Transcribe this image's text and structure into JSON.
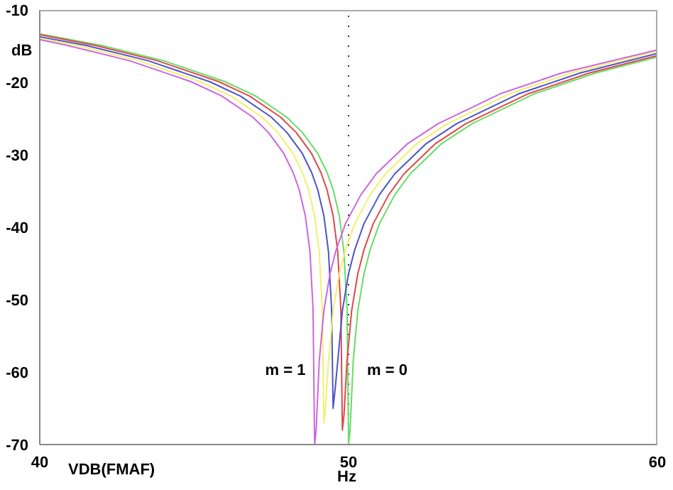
{
  "chart_data": {
    "type": "line",
    "xlabel": "Hz",
    "ylabel": "dB",
    "legend_title": "VDB(FMAF)",
    "grid": false,
    "line_style": "solid",
    "xlim": [
      40,
      60
    ],
    "xticks": [
      40,
      50,
      60
    ],
    "ylim": [
      -70,
      -10
    ],
    "yticks": [
      -70,
      -60,
      -50,
      -40,
      -30,
      -20,
      -10
    ],
    "series": [
      {
        "color": "#66dd66",
        "x": [
          40,
          42,
          44,
          46,
          47,
          48,
          48.5,
          49,
          49.3,
          49.5,
          49.7,
          49.85,
          49.95,
          50,
          50.05,
          50.15,
          50.3,
          50.5,
          50.7,
          51,
          51.5,
          52,
          53,
          54,
          56,
          58,
          60
        ],
        "values": [
          -13.3,
          -14.9,
          -17.0,
          -19.9,
          -21.9,
          -24.8,
          -26.9,
          -29.8,
          -32.4,
          -34.8,
          -38.4,
          -43.4,
          -51.3,
          -70,
          -68,
          -58.5,
          -51.5,
          -46.4,
          -43.1,
          -39.5,
          -35.5,
          -32.6,
          -28.5,
          -25.7,
          -21.6,
          -18.7,
          -16.5
        ]
      },
      {
        "color": "#e04848",
        "x": [
          40,
          41.8,
          43.8,
          45.8,
          46.8,
          47.8,
          48.3,
          48.8,
          49.1,
          49.3,
          49.5,
          49.65,
          49.75,
          49.8,
          49.85,
          49.95,
          50.1,
          50.3,
          50.5,
          50.8,
          51.3,
          51.8,
          52.8,
          53.8,
          55.8,
          57.8,
          60
        ],
        "values": [
          -13.4,
          -14.9,
          -17.0,
          -19.9,
          -21.9,
          -24.8,
          -26.9,
          -29.8,
          -32.4,
          -34.8,
          -38.4,
          -43.4,
          -51.3,
          -68,
          -66,
          -58.5,
          -51.5,
          -46.4,
          -43.1,
          -39.5,
          -35.5,
          -32.6,
          -28.5,
          -25.7,
          -21.6,
          -18.7,
          -16.3
        ]
      },
      {
        "color": "#4a55c8",
        "x": [
          40,
          41.5,
          43.5,
          45.5,
          46.5,
          47.5,
          48,
          48.5,
          48.8,
          49,
          49.2,
          49.35,
          49.45,
          49.5,
          49.55,
          49.65,
          49.8,
          50,
          50.2,
          50.5,
          51,
          51.5,
          52.5,
          53.5,
          55.5,
          57.5,
          60
        ],
        "values": [
          -13.7,
          -14.9,
          -17.0,
          -19.9,
          -21.9,
          -24.8,
          -26.9,
          -29.8,
          -32.4,
          -34.8,
          -38.4,
          -43.4,
          -51.3,
          -65,
          -63,
          -58.5,
          -51.5,
          -46.4,
          -43.1,
          -39.5,
          -35.5,
          -32.6,
          -28.5,
          -25.7,
          -21.6,
          -18.7,
          -16.0
        ]
      },
      {
        "color": "#f0f070",
        "x": [
          40,
          41.2,
          43.2,
          45.2,
          46.2,
          47.2,
          47.7,
          48.2,
          48.5,
          48.7,
          48.9,
          49.05,
          49.15,
          49.2,
          49.25,
          49.35,
          49.5,
          49.7,
          49.9,
          50.2,
          50.7,
          51.2,
          52.2,
          53.2,
          55.2,
          57.2,
          60
        ],
        "values": [
          -13.9,
          -14.9,
          -17.0,
          -19.9,
          -21.9,
          -24.8,
          -26.9,
          -29.8,
          -32.4,
          -34.8,
          -38.4,
          -43.4,
          -51.3,
          -67,
          -65,
          -58.5,
          -51.5,
          -46.4,
          -43.1,
          -39.5,
          -35.5,
          -32.6,
          -28.5,
          -25.7,
          -21.6,
          -18.7,
          -15.7
        ]
      },
      {
        "color": "#cc66dd",
        "x": [
          40,
          40.9,
          42.9,
          44.9,
          45.9,
          46.9,
          47.4,
          47.9,
          48.2,
          48.4,
          48.6,
          48.75,
          48.85,
          48.9,
          48.95,
          49.05,
          49.2,
          49.4,
          49.6,
          49.9,
          50.4,
          50.9,
          51.9,
          52.9,
          54.9,
          56.9,
          60
        ],
        "values": [
          -14.1,
          -14.9,
          -17.0,
          -19.9,
          -21.9,
          -24.8,
          -26.9,
          -29.8,
          -32.4,
          -34.8,
          -38.4,
          -43.4,
          -51.3,
          -70,
          -68,
          -58.5,
          -51.5,
          -46.4,
          -43.1,
          -39.5,
          -35.5,
          -32.6,
          -28.5,
          -25.7,
          -21.6,
          -18.7,
          -15.5
        ]
      }
    ],
    "ref_lines": [
      {
        "axis": "x",
        "value": 50,
        "color": "#333333",
        "line_style": "dotted"
      }
    ],
    "annotations": [
      "m = 1",
      "m = 0"
    ]
  }
}
